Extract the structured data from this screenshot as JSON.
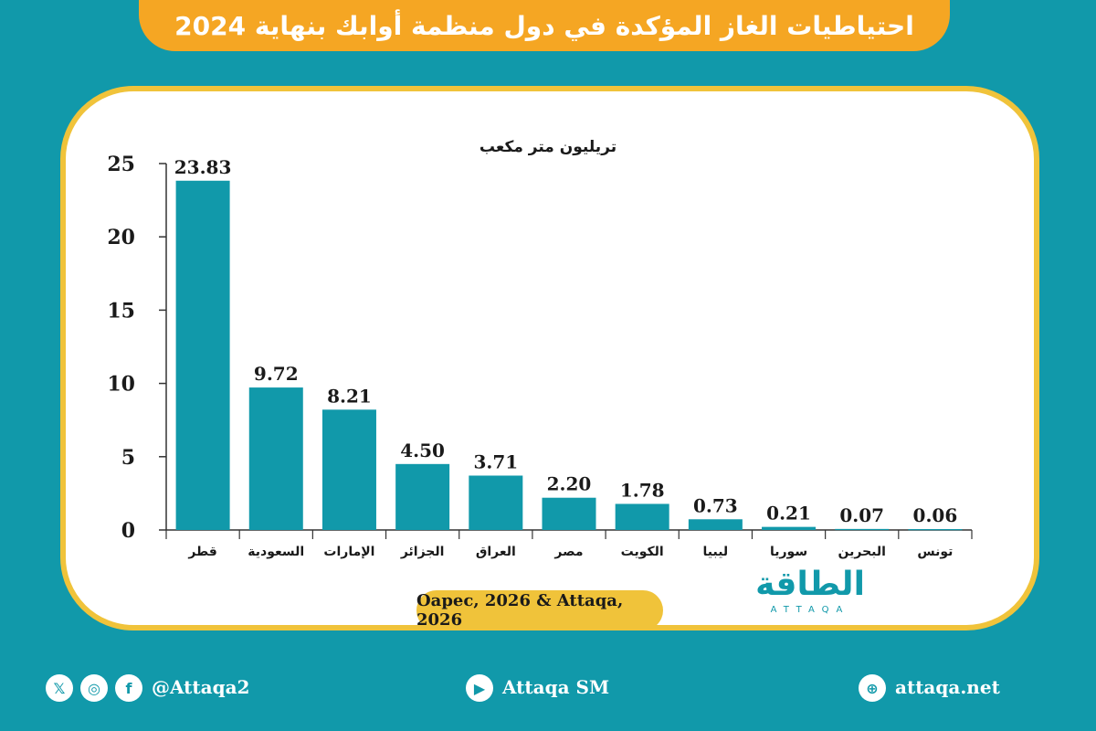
{
  "title": "احتياطيات الغاز المؤكدة في دول منظمة أوابك بنهاية 2024",
  "source": "Oapec, 2026 & Attaqa, 2026",
  "logo": {
    "arabic": "الطاقة",
    "latin": "ATTAQA"
  },
  "footer": {
    "social_handle": "@Attaqa2",
    "youtube": "Attaqa SM",
    "website": "attaqa.net",
    "icons": [
      "x-icon",
      "instagram-icon",
      "facebook-icon",
      "youtube-icon",
      "globe-icon"
    ]
  },
  "colors": {
    "background": "#1199aa",
    "bar": "#1199aa",
    "banner": "#f5a623",
    "border": "#f0c33a"
  },
  "chart_data": {
    "type": "bar",
    "ylabel": "تريليون متر مكعب",
    "ylim": [
      0,
      25
    ],
    "yticks": [
      0,
      5,
      10,
      15,
      20,
      25
    ],
    "grid": false,
    "categories": [
      "قطر",
      "السعودية",
      "الإمارات",
      "الجزائر",
      "العراق",
      "مصر",
      "الكويت",
      "ليبيا",
      "سوريا",
      "البحرين",
      "تونس"
    ],
    "values": [
      23.83,
      9.72,
      8.21,
      4.5,
      3.71,
      2.2,
      1.78,
      0.73,
      0.21,
      0.07,
      0.06
    ],
    "value_labels": [
      "23.83",
      "9.72",
      "8.21",
      "4.50",
      "3.71",
      "2.20",
      "1.78",
      "0.73",
      "0.21",
      "0.07",
      "0.06"
    ]
  }
}
